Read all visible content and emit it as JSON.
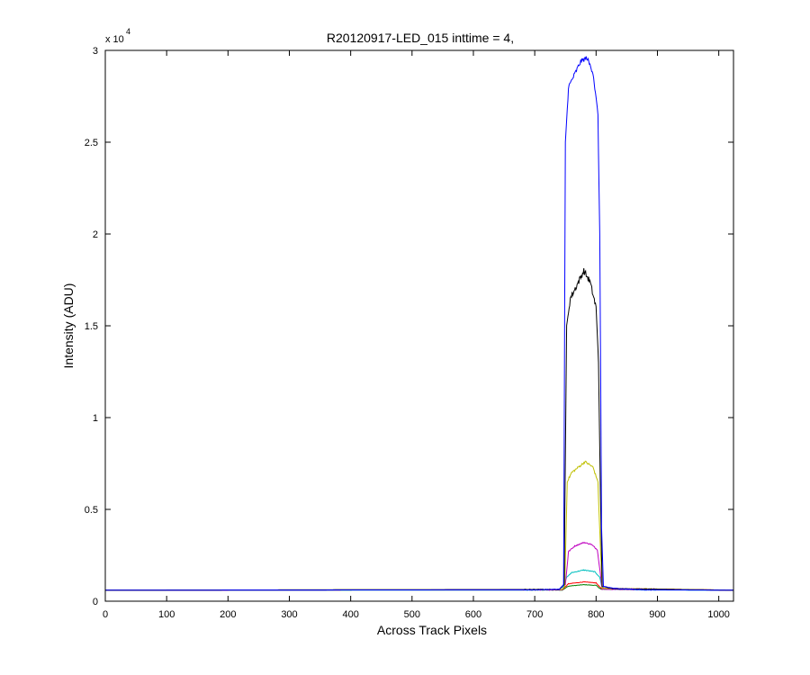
{
  "chart_data": {
    "type": "line",
    "title": "R20120917-LED_015 inttime = 4,",
    "xlabel": "Across Track Pixels",
    "ylabel": "Intensity (ADU)",
    "y_multiplier_label": "x 10",
    "y_multiplier_exponent": "4",
    "xlim": [
      0,
      1024
    ],
    "ylim": [
      0,
      30000
    ],
    "x_ticks": [
      0,
      100,
      200,
      300,
      400,
      500,
      600,
      700,
      800,
      900,
      1000
    ],
    "x_tick_labels": [
      "0",
      "100",
      "200",
      "300",
      "400",
      "500",
      "600",
      "700",
      "800",
      "900",
      "1000"
    ],
    "y_ticks": [
      0,
      5000,
      10000,
      15000,
      20000,
      25000,
      30000
    ],
    "y_tick_labels": [
      "0",
      "0.5",
      "1",
      "1.5",
      "2",
      "2.5",
      "3"
    ],
    "grid": false,
    "legend": "none",
    "baseline": 600,
    "series": [
      {
        "color": "#0000ff",
        "peak": 29600,
        "edge": 27500,
        "rise": [
          748,
          754
        ],
        "fall": [
          802,
          810
        ],
        "noise": 250,
        "points": [
          [
            0,
            600
          ],
          [
            700,
            620
          ],
          [
            740,
            650
          ],
          [
            747,
            900
          ],
          [
            750,
            25000
          ],
          [
            755,
            28000
          ],
          [
            765,
            28700
          ],
          [
            775,
            29400
          ],
          [
            785,
            29600
          ],
          [
            795,
            28800
          ],
          [
            803,
            26500
          ],
          [
            806,
            20000
          ],
          [
            809,
            4000
          ],
          [
            812,
            800
          ],
          [
            830,
            700
          ],
          [
            880,
            620
          ],
          [
            1024,
            600
          ]
        ]
      },
      {
        "color": "#000000",
        "peak": 18000,
        "edge": 16000,
        "rise": [
          748,
          755
        ],
        "fall": [
          800,
          808
        ],
        "noise": 350,
        "points": [
          [
            0,
            600
          ],
          [
            740,
            640
          ],
          [
            748,
            900
          ],
          [
            752,
            15000
          ],
          [
            758,
            16500
          ],
          [
            770,
            17300
          ],
          [
            780,
            18000
          ],
          [
            790,
            17400
          ],
          [
            800,
            16000
          ],
          [
            804,
            13000
          ],
          [
            807,
            6000
          ],
          [
            810,
            800
          ],
          [
            830,
            680
          ],
          [
            1024,
            600
          ]
        ]
      },
      {
        "color": "#bfbf00",
        "peak": 7600,
        "edge": 6800,
        "rise": [
          748,
          755
        ],
        "fall": [
          800,
          808
        ],
        "noise": 120,
        "points": [
          [
            0,
            600
          ],
          [
            745,
            640
          ],
          [
            749,
            800
          ],
          [
            753,
            6500
          ],
          [
            760,
            7000
          ],
          [
            775,
            7400
          ],
          [
            782,
            7600
          ],
          [
            795,
            7300
          ],
          [
            803,
            6500
          ],
          [
            807,
            3000
          ],
          [
            810,
            700
          ],
          [
            1024,
            600
          ]
        ]
      },
      {
        "color": "#bf00bf",
        "peak": 3200,
        "edge": 2700,
        "rise": [
          748,
          756
        ],
        "fall": [
          800,
          808
        ],
        "noise": 60,
        "points": [
          [
            0,
            600
          ],
          [
            745,
            620
          ],
          [
            750,
            900
          ],
          [
            755,
            2700
          ],
          [
            765,
            3000
          ],
          [
            780,
            3200
          ],
          [
            792,
            3100
          ],
          [
            802,
            2800
          ],
          [
            807,
            1500
          ],
          [
            810,
            650
          ],
          [
            1024,
            600
          ]
        ]
      },
      {
        "color": "#00bfbf",
        "peak": 1700,
        "edge": 1450,
        "rise": [
          748,
          756
        ],
        "fall": [
          800,
          808
        ],
        "noise": 40,
        "points": [
          [
            0,
            600
          ],
          [
            690,
            610
          ],
          [
            745,
            640
          ],
          [
            752,
            1300
          ],
          [
            760,
            1550
          ],
          [
            780,
            1700
          ],
          [
            798,
            1600
          ],
          [
            806,
            1300
          ],
          [
            810,
            700
          ],
          [
            830,
            640
          ],
          [
            880,
            610
          ],
          [
            1024,
            600
          ]
        ]
      },
      {
        "color": "#ff0000",
        "peak": 1050,
        "edge": 950,
        "rise": [
          748,
          756
        ],
        "fall": [
          800,
          808
        ],
        "noise": 25,
        "points": [
          [
            0,
            600
          ],
          [
            745,
            620
          ],
          [
            755,
            950
          ],
          [
            780,
            1050
          ],
          [
            800,
            1000
          ],
          [
            808,
            700
          ],
          [
            1024,
            600
          ]
        ]
      },
      {
        "color": "#008000",
        "peak": 900,
        "edge": 820,
        "rise": [
          748,
          756
        ],
        "fall": [
          800,
          808
        ],
        "noise": 20,
        "points": [
          [
            0,
            600
          ],
          [
            745,
            610
          ],
          [
            755,
            820
          ],
          [
            780,
            900
          ],
          [
            800,
            860
          ],
          [
            808,
            650
          ],
          [
            1024,
            600
          ]
        ]
      }
    ]
  }
}
